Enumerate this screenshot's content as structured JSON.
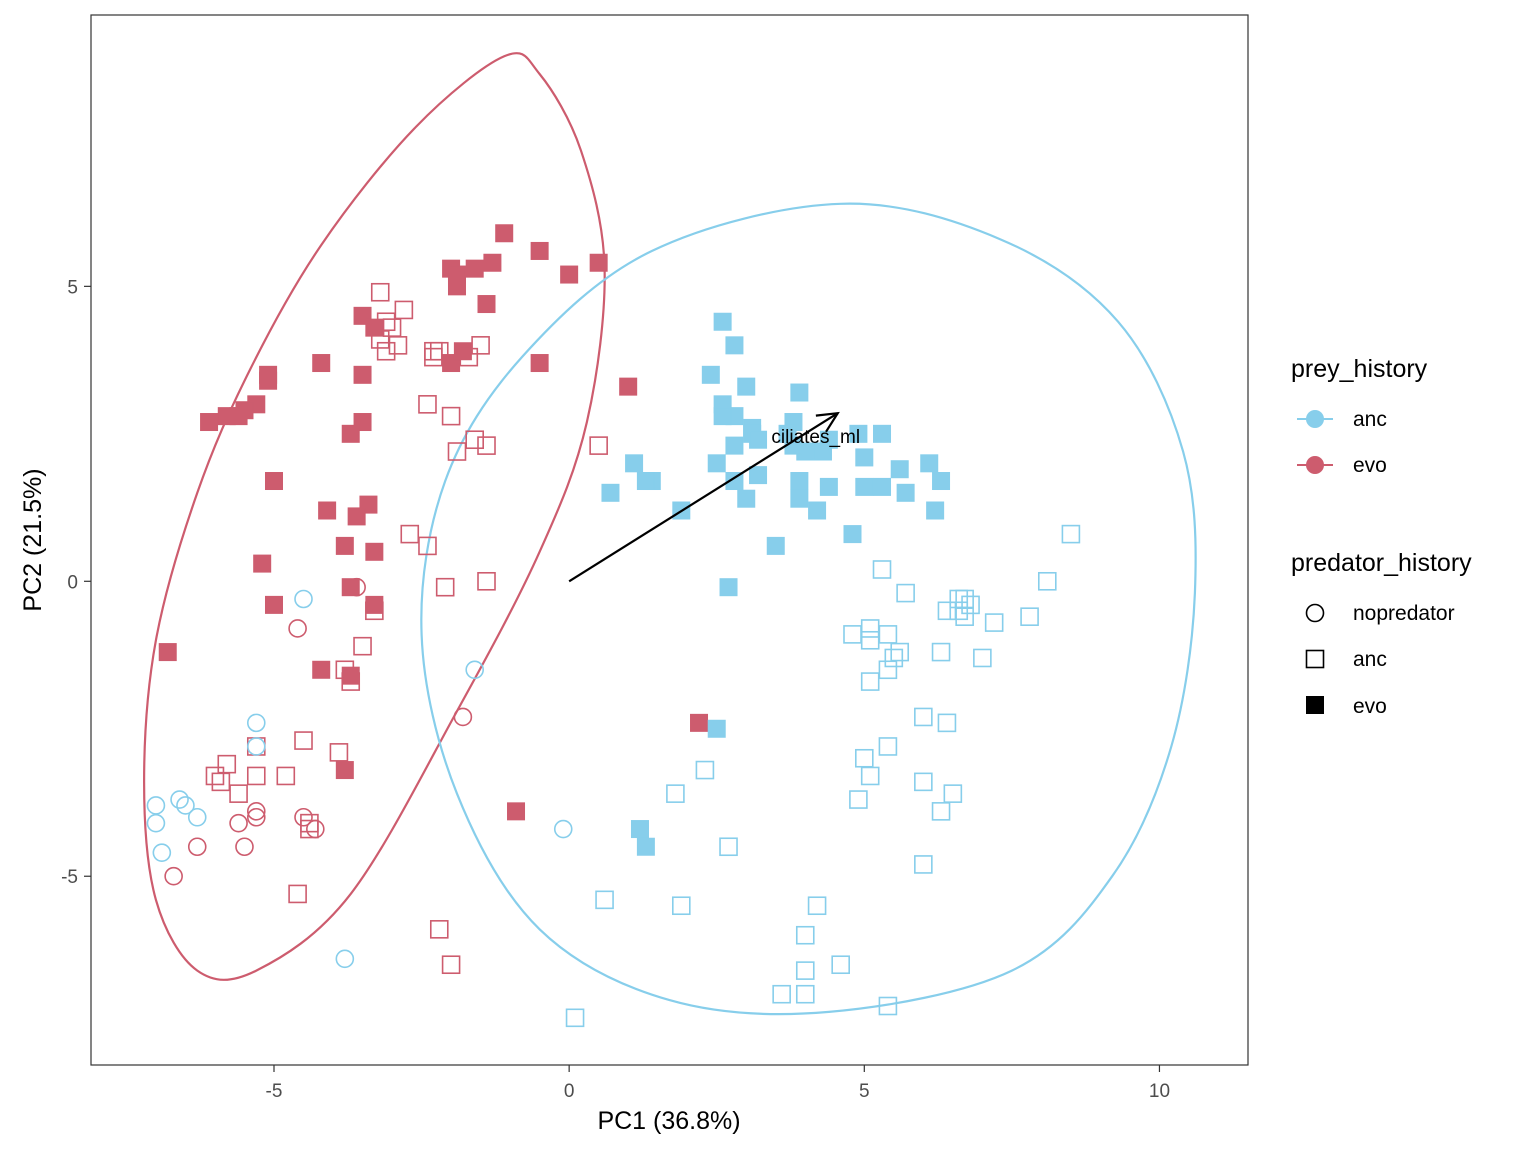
{
  "chart_data": {
    "type": "scatter",
    "xlabel": "PC1 (36.8%)",
    "ylabel": "PC2 (21.5%)",
    "xlim": [
      -8.1,
      11.5
    ],
    "ylim": [
      -8.2,
      9.6
    ],
    "x_ticks": [
      {
        "value": -5,
        "label": "-5"
      },
      {
        "value": 0,
        "label": "0"
      },
      {
        "value": 5,
        "label": "5"
      },
      {
        "value": 10,
        "label": "10"
      }
    ],
    "y_ticks": [
      {
        "value": -5,
        "label": "-5"
      },
      {
        "value": 0,
        "label": "0"
      },
      {
        "value": 5,
        "label": "5"
      }
    ],
    "grid": false,
    "colors": {
      "anc": "#87CEEB",
      "evo": "#CD5C6E"
    },
    "legend": {
      "placement": "right",
      "prey_history": {
        "title": "prey_history",
        "items": [
          "anc",
          "evo"
        ]
      },
      "predator_history": {
        "title": "predator_history",
        "items": [
          "nopredator",
          "anc",
          "evo"
        ]
      }
    },
    "loading": {
      "label": "ciliates_ml",
      "from": [
        0,
        0
      ],
      "to": [
        4.55,
        2.85
      ]
    },
    "ellipses": [
      {
        "group": "evo",
        "points": [
          [
            -1.1,
            8.9
          ],
          [
            -0.5,
            8.6
          ],
          [
            0.2,
            7.3
          ],
          [
            0.6,
            5.3
          ],
          [
            0.3,
            2.7
          ],
          [
            -0.5,
            0.5
          ],
          [
            -1.9,
            -2.2
          ],
          [
            -3.7,
            -5.3
          ],
          [
            -5.3,
            -6.6
          ],
          [
            -6.3,
            -6.6
          ],
          [
            -7.0,
            -5.4
          ],
          [
            -7.2,
            -3.4
          ],
          [
            -7.0,
            -1.0
          ],
          [
            -6.3,
            1.5
          ],
          [
            -5.4,
            3.6
          ],
          [
            -4.2,
            5.7
          ],
          [
            -2.6,
            7.7
          ]
        ]
      },
      {
        "group": "anc",
        "points": [
          [
            4.6,
            6.4
          ],
          [
            7.3,
            5.8
          ],
          [
            9.3,
            4.4
          ],
          [
            10.4,
            2.2
          ],
          [
            10.6,
            -0.2
          ],
          [
            10.2,
            -2.8
          ],
          [
            9.2,
            -5.0
          ],
          [
            7.5,
            -6.6
          ],
          [
            4.4,
            -7.3
          ],
          [
            1.7,
            -7.1
          ],
          [
            -0.5,
            -5.9
          ],
          [
            -1.9,
            -3.6
          ],
          [
            -2.5,
            -0.9
          ],
          [
            -2.1,
            1.7
          ],
          [
            -0.8,
            3.8
          ],
          [
            1.4,
            5.6
          ]
        ]
      }
    ],
    "series": [
      {
        "prey": "evo",
        "predator": "evo",
        "points": [
          [
            -1.1,
            5.9
          ],
          [
            -0.5,
            5.6
          ],
          [
            0.5,
            5.4
          ],
          [
            0.0,
            5.2
          ],
          [
            -1.3,
            5.4
          ],
          [
            -1.6,
            5.3
          ],
          [
            -2.0,
            5.3
          ],
          [
            -1.9,
            5.2
          ],
          [
            -1.9,
            5.0
          ],
          [
            -1.4,
            4.7
          ],
          [
            -3.5,
            4.5
          ],
          [
            -3.3,
            4.3
          ],
          [
            -4.2,
            3.7
          ],
          [
            -2.0,
            3.7
          ],
          [
            -1.8,
            3.9
          ],
          [
            -0.5,
            3.7
          ],
          [
            -3.5,
            3.5
          ],
          [
            -5.1,
            3.5
          ],
          [
            -5.1,
            3.4
          ],
          [
            -5.3,
            3.0
          ],
          [
            -5.5,
            2.9
          ],
          [
            -5.6,
            2.8
          ],
          [
            -5.8,
            2.8
          ],
          [
            -6.1,
            2.7
          ],
          [
            -3.5,
            2.7
          ],
          [
            -3.7,
            2.5
          ],
          [
            1.0,
            3.3
          ],
          [
            -5.0,
            1.7
          ],
          [
            -4.1,
            1.2
          ],
          [
            -3.4,
            1.3
          ],
          [
            -3.6,
            1.1
          ],
          [
            -3.8,
            0.6
          ],
          [
            -3.3,
            0.5
          ],
          [
            -5.2,
            0.3
          ],
          [
            -5.0,
            -0.4
          ],
          [
            -3.7,
            -0.1
          ],
          [
            -3.3,
            -0.4
          ],
          [
            -6.8,
            -1.2
          ],
          [
            -4.2,
            -1.5
          ],
          [
            -3.7,
            -1.6
          ],
          [
            -3.8,
            -3.2
          ],
          [
            2.2,
            -2.4
          ],
          [
            -0.9,
            -3.9
          ]
        ]
      },
      {
        "prey": "evo",
        "predator": "anc",
        "points": [
          [
            -3.2,
            4.9
          ],
          [
            -2.8,
            4.6
          ],
          [
            -3.1,
            4.4
          ],
          [
            -3.0,
            4.3
          ],
          [
            -3.2,
            4.1
          ],
          [
            -2.9,
            4.0
          ],
          [
            -3.1,
            3.9
          ],
          [
            -2.3,
            3.9
          ],
          [
            -2.3,
            3.8
          ],
          [
            -2.2,
            3.9
          ],
          [
            -1.5,
            4.0
          ],
          [
            -1.7,
            3.8
          ],
          [
            -2.4,
            3.0
          ],
          [
            -2.0,
            2.8
          ],
          [
            -1.6,
            2.4
          ],
          [
            -1.4,
            2.3
          ],
          [
            -1.9,
            2.2
          ],
          [
            0.5,
            2.3
          ],
          [
            -2.7,
            0.8
          ],
          [
            -2.4,
            0.6
          ],
          [
            -2.1,
            -0.1
          ],
          [
            -1.4,
            0.0
          ],
          [
            -3.3,
            -0.5
          ],
          [
            -3.5,
            -1.1
          ],
          [
            -3.8,
            -1.5
          ],
          [
            -3.7,
            -1.7
          ],
          [
            -4.5,
            -2.7
          ],
          [
            -3.9,
            -2.9
          ],
          [
            -5.3,
            -2.8
          ],
          [
            -5.8,
            -3.1
          ],
          [
            -6.0,
            -3.3
          ],
          [
            -5.9,
            -3.4
          ],
          [
            -5.3,
            -3.3
          ],
          [
            -4.8,
            -3.3
          ],
          [
            -5.6,
            -3.6
          ],
          [
            -4.4,
            -4.1
          ],
          [
            -4.4,
            -4.2
          ],
          [
            -4.6,
            -5.3
          ],
          [
            -2.2,
            -5.9
          ],
          [
            -2.0,
            -6.5
          ]
        ]
      },
      {
        "prey": "evo",
        "predator": "nopredator",
        "points": [
          [
            -3.6,
            -0.1
          ],
          [
            -4.6,
            -0.8
          ],
          [
            -1.8,
            -2.3
          ],
          [
            -5.3,
            -3.9
          ],
          [
            -5.3,
            -4.0
          ],
          [
            -5.6,
            -4.1
          ],
          [
            -6.3,
            -4.5
          ],
          [
            -5.5,
            -4.5
          ],
          [
            -4.5,
            -4.0
          ],
          [
            -4.3,
            -4.2
          ],
          [
            -6.7,
            -5.0
          ]
        ]
      },
      {
        "prey": "anc",
        "predator": "evo",
        "points": [
          [
            2.6,
            4.4
          ],
          [
            2.8,
            4.0
          ],
          [
            2.4,
            3.5
          ],
          [
            3.0,
            3.3
          ],
          [
            3.9,
            3.2
          ],
          [
            2.6,
            3.0
          ],
          [
            2.8,
            2.8
          ],
          [
            2.6,
            2.8
          ],
          [
            3.1,
            2.6
          ],
          [
            3.8,
            2.7
          ],
          [
            3.1,
            2.5
          ],
          [
            3.2,
            2.4
          ],
          [
            4.0,
            2.2
          ],
          [
            4.4,
            2.4
          ],
          [
            4.3,
            2.2
          ],
          [
            4.9,
            2.5
          ],
          [
            5.3,
            2.5
          ],
          [
            3.7,
            2.5
          ],
          [
            3.8,
            2.3
          ],
          [
            2.8,
            2.3
          ],
          [
            5.0,
            2.1
          ],
          [
            2.5,
            2.0
          ],
          [
            1.1,
            2.0
          ],
          [
            6.1,
            2.0
          ],
          [
            5.6,
            1.9
          ],
          [
            6.3,
            1.7
          ],
          [
            3.2,
            1.8
          ],
          [
            2.8,
            1.7
          ],
          [
            3.9,
            1.7
          ],
          [
            4.4,
            1.6
          ],
          [
            5.0,
            1.6
          ],
          [
            5.3,
            1.6
          ],
          [
            5.7,
            1.5
          ],
          [
            3.9,
            1.4
          ],
          [
            3.0,
            1.4
          ],
          [
            1.4,
            1.7
          ],
          [
            1.3,
            1.7
          ],
          [
            0.7,
            1.5
          ],
          [
            4.2,
            1.2
          ],
          [
            6.2,
            1.2
          ],
          [
            1.9,
            1.2
          ],
          [
            4.8,
            0.8
          ],
          [
            3.5,
            0.6
          ],
          [
            2.7,
            -0.1
          ],
          [
            2.5,
            -2.5
          ],
          [
            1.2,
            -4.2
          ],
          [
            1.3,
            -4.5
          ]
        ]
      },
      {
        "prey": "anc",
        "predator": "anc",
        "points": [
          [
            8.5,
            0.8
          ],
          [
            8.1,
            0.0
          ],
          [
            5.3,
            0.2
          ],
          [
            5.7,
            -0.2
          ],
          [
            6.6,
            -0.3
          ],
          [
            6.7,
            -0.3
          ],
          [
            6.8,
            -0.4
          ],
          [
            6.6,
            -0.5
          ],
          [
            6.4,
            -0.5
          ],
          [
            6.7,
            -0.6
          ],
          [
            7.2,
            -0.7
          ],
          [
            7.8,
            -0.6
          ],
          [
            5.1,
            -0.8
          ],
          [
            4.8,
            -0.9
          ],
          [
            5.4,
            -0.9
          ],
          [
            5.1,
            -1.0
          ],
          [
            5.6,
            -1.2
          ],
          [
            5.5,
            -1.3
          ],
          [
            6.3,
            -1.2
          ],
          [
            7.0,
            -1.3
          ],
          [
            5.4,
            -1.5
          ],
          [
            5.1,
            -1.7
          ],
          [
            6.0,
            -2.3
          ],
          [
            6.4,
            -2.4
          ],
          [
            5.4,
            -2.8
          ],
          [
            5.0,
            -3.0
          ],
          [
            5.1,
            -3.3
          ],
          [
            6.0,
            -3.4
          ],
          [
            6.5,
            -3.6
          ],
          [
            4.9,
            -3.7
          ],
          [
            6.3,
            -3.9
          ],
          [
            6.0,
            -4.8
          ],
          [
            2.3,
            -3.2
          ],
          [
            1.8,
            -3.6
          ],
          [
            2.7,
            -4.5
          ],
          [
            0.6,
            -5.4
          ],
          [
            1.9,
            -5.5
          ],
          [
            4.2,
            -5.5
          ],
          [
            4.0,
            -6.0
          ],
          [
            4.6,
            -6.5
          ],
          [
            4.0,
            -6.6
          ],
          [
            3.6,
            -7.0
          ],
          [
            4.0,
            -7.0
          ],
          [
            5.4,
            -7.2
          ],
          [
            0.1,
            -7.4
          ]
        ]
      },
      {
        "prey": "anc",
        "predator": "nopredator",
        "points": [
          [
            -4.5,
            -0.3
          ],
          [
            -1.6,
            -1.5
          ],
          [
            -5.3,
            -2.4
          ],
          [
            -5.3,
            -2.8
          ],
          [
            -7.0,
            -3.8
          ],
          [
            -6.6,
            -3.7
          ],
          [
            -6.5,
            -3.8
          ],
          [
            -7.0,
            -4.1
          ],
          [
            -6.3,
            -4.0
          ],
          [
            -6.9,
            -4.6
          ],
          [
            -0.1,
            -4.2
          ],
          [
            -3.8,
            -6.4
          ]
        ]
      }
    ]
  }
}
